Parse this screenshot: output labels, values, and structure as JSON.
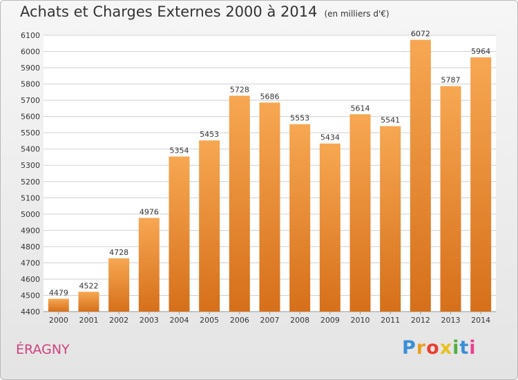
{
  "title": "Achats et Charges Externes 2000 à 2014",
  "unit_label": "(en milliers d'€)",
  "commune": "ÉRAGNY",
  "brand": {
    "letters": [
      "P",
      "r",
      "o",
      "x",
      "i",
      "t",
      "i"
    ],
    "colors": [
      "#3a8fd8",
      "#e8a020",
      "#e84030",
      "#e8c020",
      "#50b040",
      "#3a8fd8",
      "#e84090"
    ]
  },
  "colors": {
    "bar_light": "#f7a752",
    "bar_dark": "#d66f1a",
    "commune": "#d04080"
  },
  "chart_data": {
    "type": "bar",
    "categories": [
      "2000",
      "2001",
      "2002",
      "2003",
      "2004",
      "2005",
      "2006",
      "2007",
      "2008",
      "2009",
      "2010",
      "2011",
      "2012",
      "2013",
      "2014"
    ],
    "values": [
      4479,
      4522,
      4728,
      4976,
      5354,
      5453,
      5728,
      5686,
      5553,
      5434,
      5614,
      5541,
      6072,
      5787,
      5964
    ],
    "ylim": [
      4400,
      6100
    ],
    "yticks": [
      4400,
      4500,
      4600,
      4700,
      4800,
      4900,
      5000,
      5100,
      5200,
      5300,
      5400,
      5500,
      5600,
      5700,
      5800,
      5900,
      6000,
      6100
    ],
    "grid": true
  }
}
